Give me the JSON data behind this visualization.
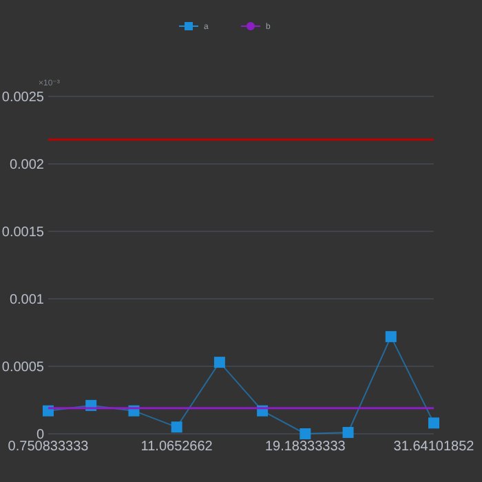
{
  "chart_data": {
    "type": "line",
    "ylabel": "×10⁻³",
    "categories": [
      "0.750833333",
      null,
      null,
      "11.0652662",
      null,
      null,
      "19.18333333",
      null,
      null,
      "31.64101852"
    ],
    "series": [
      {
        "name": "a",
        "color": "#1a8ddb",
        "marker": "square",
        "values": [
          0.00017,
          0.00021,
          0.00017,
          5e-05,
          0.00053,
          0.00017,
          0,
          1e-05,
          0.00072,
          8e-05
        ]
      },
      {
        "name": "b",
        "color": "#8b1fc4",
        "marker": "none",
        "values": [
          0.00019,
          0.00019,
          0.00019,
          0.00019,
          0.00019,
          0.00019,
          0.00019,
          0.00019,
          0.00019,
          0.00019
        ]
      }
    ],
    "ref_lines": [
      {
        "axis": "y",
        "value": 0.00218,
        "color": "#c00000"
      }
    ],
    "ylim": [
      0,
      0.0025
    ],
    "yticks": [
      0,
      0.0005,
      0.001,
      0.0015,
      0.002,
      0.0025
    ],
    "grid": "y",
    "legend": "top"
  }
}
